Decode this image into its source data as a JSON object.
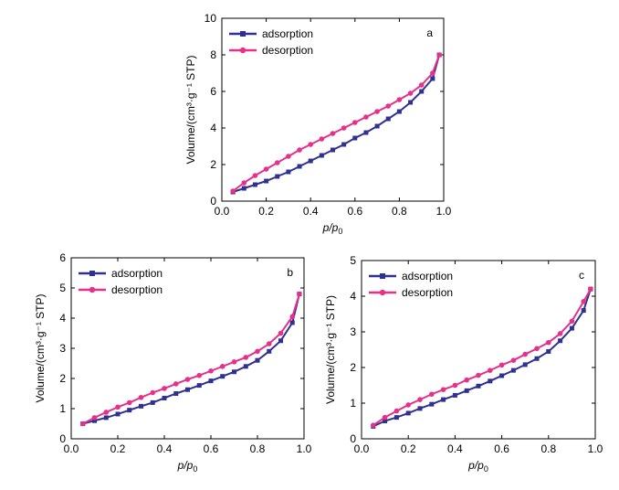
{
  "colors": {
    "adsorption": "#2e3192",
    "desorption": "#e6308a"
  },
  "chart_data": [
    {
      "type": "line",
      "panel_label": "a",
      "xlabel_main": "p/p",
      "xlabel_sub": "0",
      "ylabel": "Volume/(cm³·g⁻¹ STP)",
      "xlim": [
        0,
        1.0
      ],
      "ylim": [
        0,
        10
      ],
      "xticks": [
        "0.0",
        "0.2",
        "0.4",
        "0.6",
        "0.8",
        "1.0"
      ],
      "yticks": [
        "0",
        "2",
        "4",
        "6",
        "8",
        "10"
      ],
      "legend_position": "top-left",
      "series": [
        {
          "name": "adsorption",
          "marker": "square",
          "x": [
            0.05,
            0.1,
            0.15,
            0.2,
            0.25,
            0.3,
            0.35,
            0.4,
            0.45,
            0.5,
            0.55,
            0.6,
            0.65,
            0.7,
            0.75,
            0.8,
            0.85,
            0.9,
            0.95,
            0.98
          ],
          "y": [
            0.5,
            0.7,
            0.9,
            1.1,
            1.35,
            1.6,
            1.9,
            2.2,
            2.5,
            2.8,
            3.1,
            3.45,
            3.75,
            4.1,
            4.5,
            4.9,
            5.4,
            6.0,
            6.7,
            8.0
          ]
        },
        {
          "name": "desorption",
          "marker": "circle",
          "x": [
            0.05,
            0.1,
            0.15,
            0.2,
            0.25,
            0.3,
            0.35,
            0.4,
            0.45,
            0.5,
            0.55,
            0.6,
            0.65,
            0.7,
            0.75,
            0.8,
            0.85,
            0.9,
            0.95,
            0.98
          ],
          "y": [
            0.55,
            1.0,
            1.4,
            1.75,
            2.1,
            2.45,
            2.8,
            3.1,
            3.4,
            3.7,
            4.0,
            4.3,
            4.6,
            4.9,
            5.2,
            5.55,
            5.9,
            6.35,
            7.0,
            8.0
          ]
        }
      ]
    },
    {
      "type": "line",
      "panel_label": "b",
      "xlabel_main": "p/p",
      "xlabel_sub": "0",
      "ylabel": "Volume/(cm³·g⁻¹ STP)",
      "xlim": [
        0,
        1.0
      ],
      "ylim": [
        0,
        6
      ],
      "xticks": [
        "0.0",
        "0.2",
        "0.4",
        "0.6",
        "0.8",
        "1.0"
      ],
      "yticks": [
        "0",
        "1",
        "2",
        "3",
        "4",
        "5",
        "6"
      ],
      "legend_position": "top-left",
      "series": [
        {
          "name": "adsorption",
          "marker": "square",
          "x": [
            0.05,
            0.1,
            0.15,
            0.2,
            0.25,
            0.3,
            0.35,
            0.4,
            0.45,
            0.5,
            0.55,
            0.6,
            0.65,
            0.7,
            0.75,
            0.8,
            0.85,
            0.9,
            0.95,
            0.98
          ],
          "y": [
            0.5,
            0.6,
            0.7,
            0.82,
            0.95,
            1.08,
            1.2,
            1.35,
            1.5,
            1.63,
            1.77,
            1.92,
            2.07,
            2.22,
            2.4,
            2.6,
            2.9,
            3.25,
            3.85,
            4.8
          ]
        },
        {
          "name": "desorption",
          "marker": "circle",
          "x": [
            0.05,
            0.1,
            0.15,
            0.2,
            0.25,
            0.3,
            0.35,
            0.4,
            0.45,
            0.5,
            0.55,
            0.6,
            0.65,
            0.7,
            0.75,
            0.8,
            0.85,
            0.9,
            0.95,
            0.98
          ],
          "y": [
            0.5,
            0.7,
            0.88,
            1.05,
            1.2,
            1.37,
            1.53,
            1.67,
            1.82,
            1.97,
            2.1,
            2.25,
            2.4,
            2.55,
            2.7,
            2.9,
            3.15,
            3.5,
            4.05,
            4.8
          ]
        }
      ]
    },
    {
      "type": "line",
      "panel_label": "c",
      "xlabel_main": "p/p",
      "xlabel_sub": "0",
      "ylabel": "Volume/(cm³·g⁻¹ STP)",
      "xlim": [
        0,
        1.0
      ],
      "ylim": [
        0,
        5
      ],
      "xticks": [
        "0.0",
        "0.2",
        "0.4",
        "0.6",
        "0.8",
        "1.0"
      ],
      "yticks": [
        "0",
        "1",
        "2",
        "3",
        "4",
        "5"
      ],
      "legend_position": "top-left",
      "series": [
        {
          "name": "adsorption",
          "marker": "square",
          "x": [
            0.05,
            0.1,
            0.15,
            0.2,
            0.25,
            0.3,
            0.35,
            0.4,
            0.45,
            0.5,
            0.55,
            0.6,
            0.65,
            0.7,
            0.75,
            0.8,
            0.85,
            0.9,
            0.95,
            0.98
          ],
          "y": [
            0.35,
            0.5,
            0.6,
            0.72,
            0.85,
            0.97,
            1.1,
            1.22,
            1.35,
            1.48,
            1.62,
            1.77,
            1.92,
            2.08,
            2.25,
            2.45,
            2.75,
            3.1,
            3.6,
            4.2
          ]
        },
        {
          "name": "desorption",
          "marker": "circle",
          "x": [
            0.05,
            0.1,
            0.15,
            0.2,
            0.25,
            0.3,
            0.35,
            0.4,
            0.45,
            0.5,
            0.55,
            0.6,
            0.65,
            0.7,
            0.75,
            0.8,
            0.85,
            0.9,
            0.95,
            0.98
          ],
          "y": [
            0.38,
            0.6,
            0.78,
            0.95,
            1.1,
            1.25,
            1.38,
            1.5,
            1.65,
            1.78,
            1.92,
            2.07,
            2.2,
            2.37,
            2.53,
            2.7,
            2.95,
            3.3,
            3.85,
            4.2
          ]
        }
      ]
    }
  ]
}
